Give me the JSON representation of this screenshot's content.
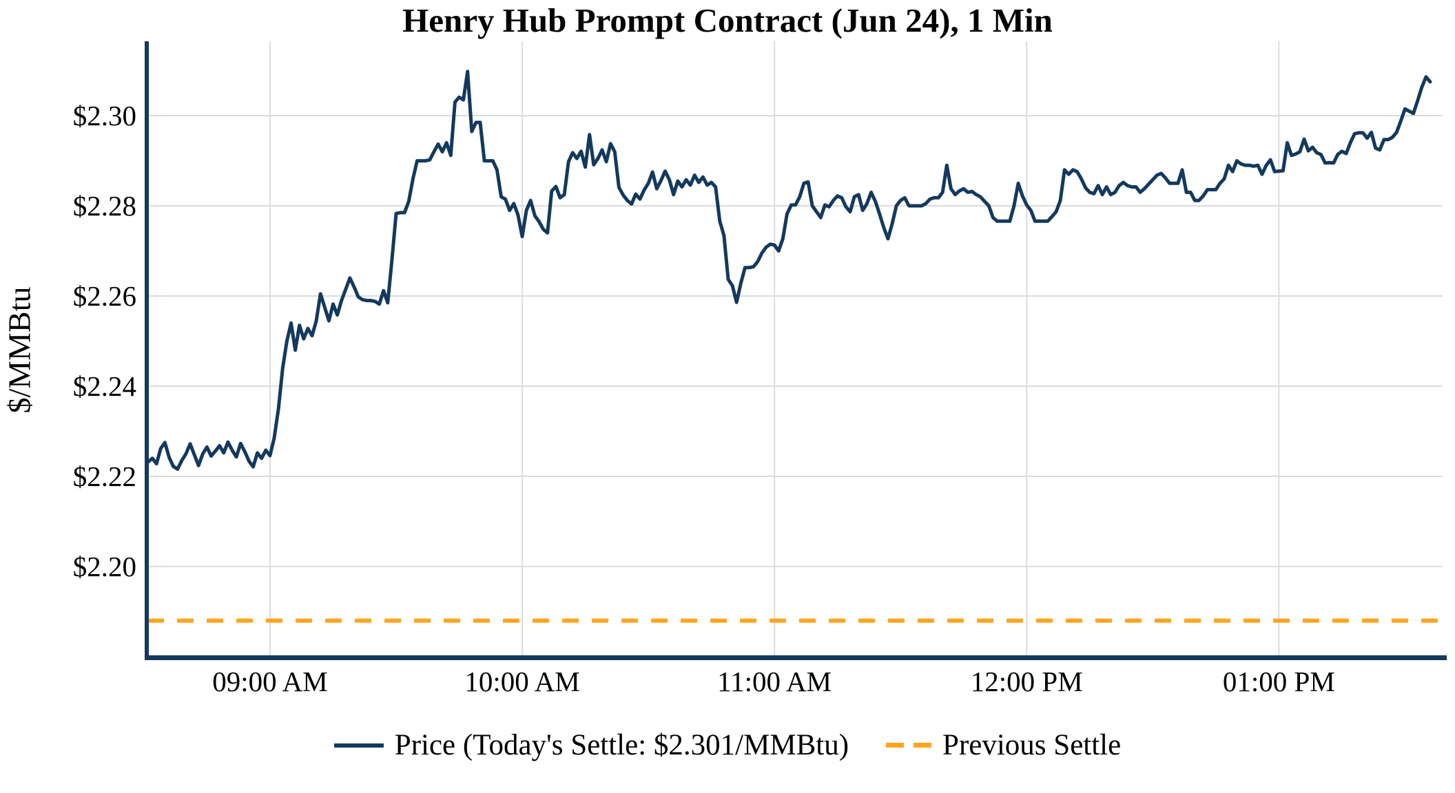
{
  "chart": {
    "title": "Henry Hub Prompt Contract (Jun 24), 1 Min",
    "y_axis_label": "$/MMBtu",
    "legend": {
      "price_label": "Price (Today's Settle: $2.301/MMBtu)",
      "previous_settle_label": "Previous Settle"
    },
    "colors": {
      "price_line": "#14395E",
      "previous_settle": "#FFA51E",
      "grid": "#DCDCDC",
      "axis": "#14395E",
      "text": "#000000",
      "background": "#FFFFFF"
    }
  },
  "chart_data": {
    "type": "line",
    "title": "Henry Hub Prompt Contract (Jun 24), 1 Min",
    "xlabel": "",
    "ylabel": "$/MMBtu",
    "grid": true,
    "legend_position": "bottom",
    "x_start_time": "08:31 AM",
    "x_end_time": "01:36 PM",
    "interval_minutes": 1,
    "todays_settle": 2.301,
    "previous_settle": 2.188,
    "ylim": [
      2.1803,
      2.3165
    ],
    "y_ticks": [
      {
        "label": "$2.20",
        "value": 2.2
      },
      {
        "label": "$2.22",
        "value": 2.22
      },
      {
        "label": "$2.24",
        "value": 2.24
      },
      {
        "label": "$2.26",
        "value": 2.26
      },
      {
        "label": "$2.28",
        "value": 2.28
      },
      {
        "label": "$2.30",
        "value": 2.3
      }
    ],
    "x_ticks": [
      {
        "label": "09:00 AM",
        "minutes": 29
      },
      {
        "label": "10:00 AM",
        "minutes": 89
      },
      {
        "label": "11:00 AM",
        "minutes": 149
      },
      {
        "label": "12:00 PM",
        "minutes": 209
      },
      {
        "label": "01:00 PM",
        "minutes": 269
      }
    ],
    "series": [
      {
        "name": "Price",
        "values": [
          2.2232,
          2.224,
          2.2228,
          2.2262,
          2.2275,
          2.2242,
          2.2222,
          2.2216,
          2.2235,
          2.225,
          2.2272,
          2.2248,
          2.2224,
          2.225,
          2.2265,
          2.2245,
          2.2256,
          2.2268,
          2.2252,
          2.2276,
          2.2258,
          2.2243,
          2.2273,
          2.2255,
          2.2234,
          2.2221,
          2.2252,
          2.224,
          2.2258,
          2.2246,
          2.2285,
          2.235,
          2.244,
          2.25,
          2.254,
          2.248,
          2.2535,
          2.2505,
          2.2528,
          2.2512,
          2.2545,
          2.2605,
          2.2575,
          2.2545,
          2.2582,
          2.2558,
          2.259,
          2.2615,
          2.264,
          2.262,
          2.2598,
          2.2592,
          2.259,
          2.259,
          2.2588,
          2.2582,
          2.2612,
          2.2585,
          2.268,
          2.2783,
          2.2785,
          2.2785,
          2.281,
          2.286,
          2.29,
          2.29,
          2.29,
          2.2902,
          2.292,
          2.2937,
          2.292,
          2.294,
          2.2912,
          2.303,
          2.3041,
          2.3035,
          2.3098,
          2.2965,
          2.2985,
          2.2985,
          2.29,
          2.29,
          2.29,
          2.288,
          2.282,
          2.2815,
          2.279,
          2.2805,
          2.278,
          2.2732,
          2.279,
          2.2812,
          2.2778,
          2.2765,
          2.2748,
          2.274,
          2.2833,
          2.2843,
          2.2818,
          2.2825,
          2.2898,
          2.2918,
          2.2905,
          2.2921,
          2.2886,
          2.2958,
          2.2891,
          2.2905,
          2.2924,
          2.2898,
          2.2938,
          2.292,
          2.2841,
          2.2824,
          2.2812,
          2.2804,
          2.2826,
          2.2815,
          2.2835,
          2.285,
          2.2875,
          2.2838,
          2.2856,
          2.2877,
          2.2858,
          2.2825,
          2.2855,
          2.2842,
          2.2858,
          2.2846,
          2.2868,
          2.2852,
          2.2864,
          2.2846,
          2.2852,
          2.2842,
          2.2766,
          2.2734,
          2.2637,
          2.2623,
          2.2586,
          2.2628,
          2.2663,
          2.2663,
          2.2665,
          2.2676,
          2.2695,
          2.2708,
          2.2715,
          2.2713,
          2.27,
          2.2727,
          2.2782,
          2.2802,
          2.2802,
          2.282,
          2.285,
          2.2853,
          2.28,
          2.2787,
          2.2774,
          2.2802,
          2.2798,
          2.2812,
          2.2822,
          2.2818,
          2.2798,
          2.2787,
          2.282,
          2.2825,
          2.279,
          2.2805,
          2.283,
          2.281,
          2.2782,
          2.2752,
          2.2727,
          2.276,
          2.28,
          2.2812,
          2.2818,
          2.28,
          2.28,
          2.28,
          2.28,
          2.2805,
          2.2815,
          2.2818,
          2.2818,
          2.283,
          2.289,
          2.2838,
          2.2825,
          2.2833,
          2.2838,
          2.283,
          2.2832,
          2.2825,
          2.282,
          2.281,
          2.28,
          2.2774,
          2.2766,
          2.2766,
          2.2766,
          2.2766,
          2.28,
          2.285,
          2.2822,
          2.2802,
          2.279,
          2.2766,
          2.2766,
          2.2766,
          2.2766,
          2.2776,
          2.2787,
          2.2812,
          2.288,
          2.287,
          2.288,
          2.2876,
          2.286,
          2.284,
          2.283,
          2.2827,
          2.2845,
          2.2825,
          2.2842,
          2.2825,
          2.283,
          2.2845,
          2.2852,
          2.2845,
          2.2842,
          2.2842,
          2.283,
          2.2838,
          2.2848,
          2.2858,
          2.2868,
          2.2872,
          2.2862,
          2.285,
          2.285,
          2.285,
          2.288,
          2.283,
          2.283,
          2.2812,
          2.2812,
          2.2822,
          2.2836,
          2.2836,
          2.2836,
          2.285,
          2.286,
          2.289,
          2.2876,
          2.29,
          2.2893,
          2.289,
          2.289,
          2.2888,
          2.289,
          2.287,
          2.289,
          2.2902,
          2.2876,
          2.2877,
          2.2878,
          2.294,
          2.2912,
          2.2915,
          2.292,
          2.2948,
          2.2922,
          2.293,
          2.2918,
          2.2914,
          2.2895,
          2.2896,
          2.2895,
          2.2914,
          2.2921,
          2.2916,
          2.294,
          2.296,
          2.2962,
          2.2962,
          2.295,
          2.2963,
          2.2928,
          2.2924,
          2.2947,
          2.2947,
          2.2952,
          2.2963,
          2.2988,
          2.3015,
          2.301,
          2.3005,
          2.3033,
          2.3063,
          2.3086,
          2.3075
        ]
      },
      {
        "name": "Previous Settle",
        "constant_value": 2.188
      }
    ]
  }
}
